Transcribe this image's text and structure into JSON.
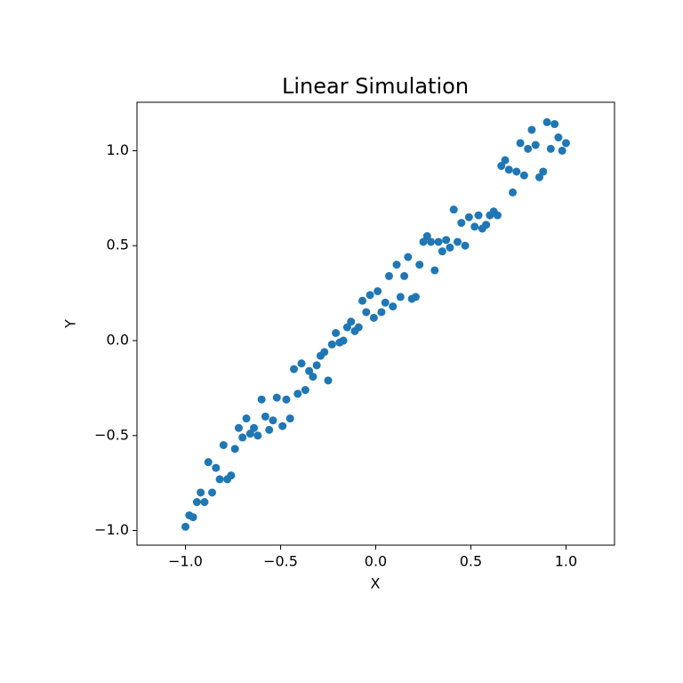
{
  "chart_data": {
    "type": "scatter",
    "title": "Linear Simulation",
    "x_label": "X",
    "y_label": "Y",
    "xlim": [
      -1.255,
      1.255
    ],
    "ylim": [
      -1.077,
      1.255
    ],
    "xticks": [
      {
        "value": -1,
        "label": "−1.0"
      },
      {
        "value": -0.5,
        "label": "−0.5"
      },
      {
        "value": 0,
        "label": "0.0"
      },
      0.5,
      {
        "value": 1,
        "label": "1.0"
      }
    ],
    "yticks": [
      {
        "value": -1,
        "label": "−1.0"
      },
      {
        "value": -0.5,
        "label": "−0.5"
      },
      {
        "value": 0,
        "label": "0.0"
      },
      0.5,
      {
        "value": 1,
        "label": "1.0"
      }
    ],
    "color": "#1f77b4",
    "x": [
      -1,
      -0.98,
      -0.96,
      -0.94,
      -0.92,
      -0.9,
      -0.88,
      -0.86,
      -0.84,
      -0.82,
      -0.8,
      -0.78,
      -0.76,
      -0.74,
      -0.72,
      -0.7,
      -0.68,
      -0.66,
      -0.64,
      -0.62,
      -0.6,
      -0.58,
      -0.56,
      -0.54,
      -0.52,
      -0.49,
      -0.47,
      -0.45,
      -0.43,
      -0.41,
      -0.39,
      -0.37,
      -0.35,
      -0.33,
      -0.31,
      -0.29,
      -0.27,
      -0.25,
      -0.23,
      -0.21,
      -0.19,
      -0.17,
      -0.15,
      -0.13,
      -0.11,
      -0.09,
      -0.07,
      -0.05,
      -0.03,
      -0.01,
      0.01,
      0.03,
      0.05,
      0.07,
      0.09,
      0.11,
      0.13,
      0.15,
      0.17,
      0.19,
      0.21,
      0.23,
      0.25,
      0.27,
      0.29,
      0.31,
      0.33,
      0.35,
      0.37,
      0.39,
      0.41,
      0.43,
      0.45,
      0.47,
      0.49,
      0.52,
      0.54,
      0.56,
      0.58,
      0.6,
      0.62,
      0.64,
      0.66,
      0.68,
      0.7,
      0.72,
      0.74,
      0.76,
      0.78,
      0.8,
      0.82,
      0.84,
      0.86,
      0.88,
      0.9,
      0.92,
      0.94,
      0.96,
      0.98,
      1
    ],
    "values": [
      -0.98,
      -0.92,
      -0.93,
      -0.85,
      -0.8,
      -0.85,
      -0.64,
      -0.8,
      -0.67,
      -0.73,
      -0.55,
      -0.73,
      -0.71,
      -0.57,
      -0.46,
      -0.51,
      -0.41,
      -0.49,
      -0.46,
      -0.5,
      -0.31,
      -0.4,
      -0.47,
      -0.42,
      -0.3,
      -0.45,
      -0.31,
      -0.41,
      -0.15,
      -0.28,
      -0.12,
      -0.26,
      -0.16,
      -0.19,
      -0.13,
      -0.08,
      -0.06,
      -0.21,
      -0.02,
      0.04,
      -0.01,
      0,
      0.07,
      0.1,
      0.05,
      0.07,
      0.21,
      0.15,
      0.24,
      0.12,
      0.26,
      0.15,
      0.2,
      0.34,
      0.18,
      0.4,
      0.23,
      0.34,
      0.44,
      0.22,
      0.23,
      0.4,
      0.52,
      0.55,
      0.52,
      0.37,
      0.52,
      0.47,
      0.53,
      0.49,
      0.69,
      0.52,
      0.62,
      0.5,
      0.65,
      0.6,
      0.66,
      0.59,
      0.61,
      0.66,
      0.68,
      0.66,
      0.92,
      0.95,
      0.9,
      0.78,
      0.89,
      1.04,
      0.87,
      1.01,
      1.11,
      1.03,
      0.86,
      0.89,
      1.15,
      1.01,
      1.14,
      1.07,
      1,
      1.04
    ]
  }
}
